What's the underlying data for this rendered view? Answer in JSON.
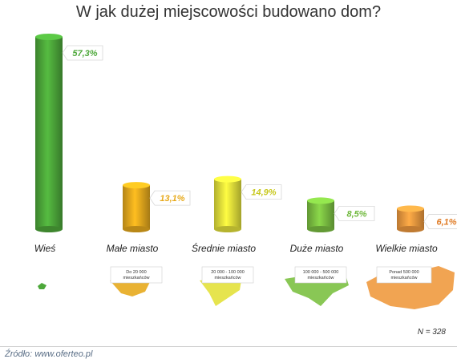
{
  "title": "W jak dużej miejscowości budowano dom?",
  "chart_data": {
    "type": "bar",
    "title": "W jak dużej miejscowości budowano dom?",
    "categories": [
      "Wieś",
      "Małe miasto",
      "Średnie miasto",
      "Duże miasto",
      "Wielkie miasto"
    ],
    "values": [
      57.3,
      13.1,
      14.9,
      8.5,
      6.1
    ],
    "value_labels": [
      "57,3%",
      "13,1%",
      "14,9%",
      "8,5%",
      "6,1%"
    ],
    "sublabels": [
      "",
      "Do 20 000 mieszkańców",
      "20 000 - 100 000 mieszkańców",
      "100 000 - 500 000 mieszkańców",
      "Ponad 500 000 mieszkańców"
    ],
    "colors": [
      "#4da83a",
      "#e7aa1d",
      "#e3e13b",
      "#7cc142",
      "#f09a3f"
    ],
    "value_label_color": [
      "#4da83a",
      "#e7aa1d",
      "#c8c81e",
      "#6fb83c",
      "#e07b24"
    ],
    "xlabel": "",
    "ylabel": "",
    "grid": false,
    "legend": "none"
  },
  "footer": {
    "n": "N = 328",
    "source_label": "Źródło:",
    "source_url": "www.oferteo.pl"
  }
}
